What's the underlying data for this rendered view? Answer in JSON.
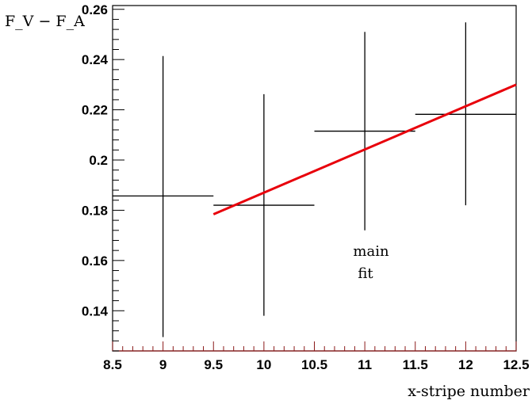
{
  "chart_data": {
    "type": "scatter",
    "xlabel": "x-stripe number",
    "ylabel": "F_V − F_A",
    "xlim": [
      8.5,
      12.5
    ],
    "ylim": [
      0.124,
      0.2615
    ],
    "x_ticks": [
      "8.5",
      "9",
      "9.5",
      "10",
      "10.5",
      "11",
      "11.5",
      "12",
      "12.5"
    ],
    "y_ticks": [
      "0.14",
      "0.16",
      "0.18",
      "0.2",
      "0.22",
      "0.24",
      "0.26"
    ],
    "grid": false,
    "points": [
      {
        "x": 9,
        "y": 0.1857,
        "xerr": 0.5,
        "ylow": 0.1295,
        "yhigh": 0.2414
      },
      {
        "x": 10,
        "y": 0.182,
        "xerr": 0.5,
        "ylow": 0.138,
        "yhigh": 0.2262
      },
      {
        "x": 11,
        "y": 0.2115,
        "xerr": 0.5,
        "ylow": 0.172,
        "yhigh": 0.251
      },
      {
        "x": 12,
        "y": 0.2182,
        "xerr": 0.5,
        "ylow": 0.182,
        "yhigh": 0.2548
      }
    ],
    "fit_line": {
      "x": [
        9.5,
        12.5
      ],
      "y": [
        0.1784,
        0.23
      ],
      "color": "#e8000b"
    },
    "annotation": [
      "main",
      "fit"
    ]
  }
}
